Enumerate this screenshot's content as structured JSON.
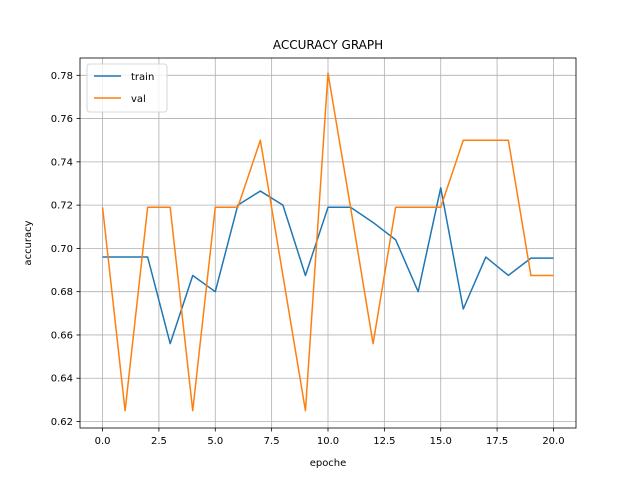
{
  "chart_data": {
    "type": "line",
    "title": "ACCURACY GRAPH",
    "xlabel": "epoche",
    "ylabel": "accuracy",
    "xlim": [
      -1,
      21
    ],
    "ylim": [
      0.617,
      0.788
    ],
    "x_ticks": [
      0.0,
      2.5,
      5.0,
      7.5,
      10.0,
      12.5,
      15.0,
      17.5,
      20.0
    ],
    "x_tick_labels": [
      "0.0",
      "2.5",
      "5.0",
      "7.5",
      "10.0",
      "12.5",
      "15.0",
      "17.5",
      "20.0"
    ],
    "y_ticks": [
      0.62,
      0.64,
      0.66,
      0.68,
      0.7,
      0.72,
      0.74,
      0.76,
      0.78
    ],
    "y_tick_labels": [
      "0.62",
      "0.64",
      "0.66",
      "0.68",
      "0.70",
      "0.72",
      "0.74",
      "0.76",
      "0.78"
    ],
    "grid": true,
    "legend_position": "top-left",
    "x": [
      0,
      1,
      2,
      3,
      4,
      5,
      6,
      7,
      8,
      9,
      10,
      11,
      12,
      13,
      14,
      15,
      16,
      17,
      18,
      19,
      20
    ],
    "series": [
      {
        "name": "train",
        "color": "#1f77b4",
        "values": [
          0.696,
          0.696,
          0.696,
          0.656,
          0.6875,
          0.68,
          0.72,
          0.7265,
          0.72,
          0.6875,
          0.719,
          0.719,
          0.712,
          0.704,
          0.68,
          0.728,
          0.672,
          0.696,
          0.6875,
          0.6955,
          0.6955
        ]
      },
      {
        "name": "val",
        "color": "#ff7f0e",
        "values": [
          0.719,
          0.625,
          0.719,
          0.719,
          0.625,
          0.719,
          0.719,
          0.75,
          0.6875,
          0.625,
          0.781,
          0.719,
          0.656,
          0.719,
          0.719,
          0.719,
          0.75,
          0.75,
          0.75,
          0.6875,
          0.6875
        ]
      }
    ]
  }
}
